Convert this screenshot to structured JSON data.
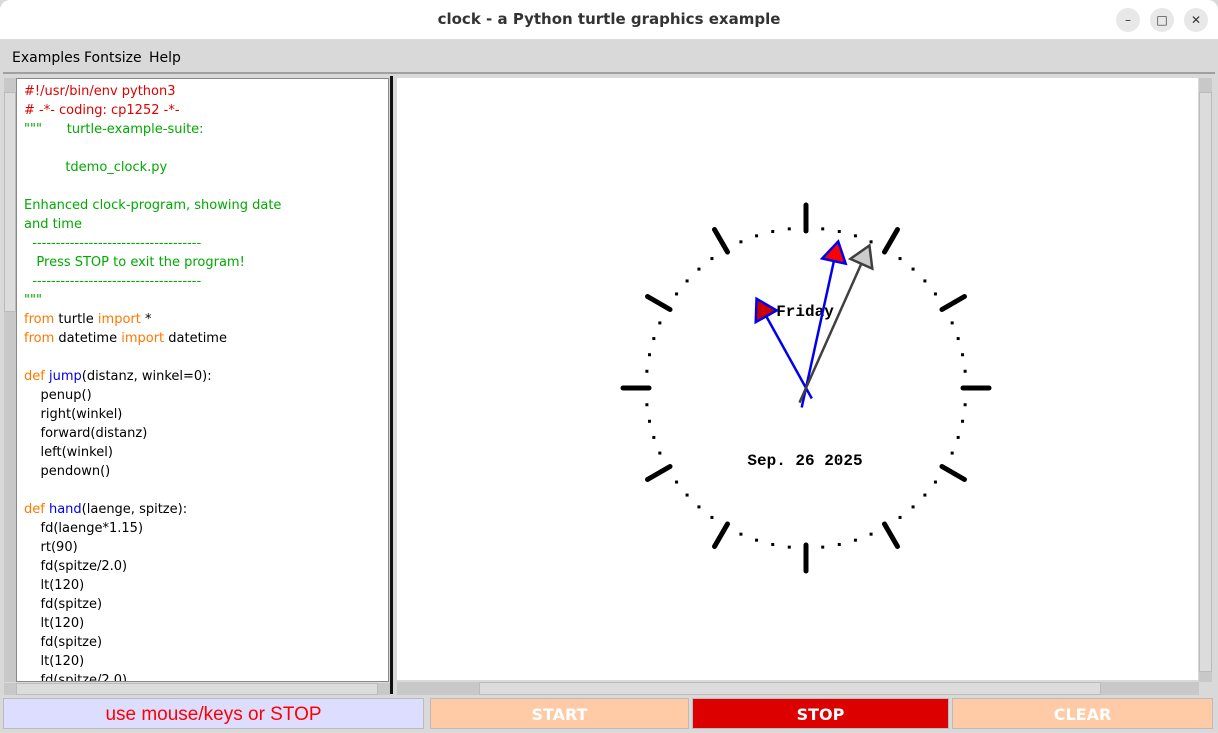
{
  "window": {
    "title": "clock - a Python turtle graphics example",
    "minimize": "–",
    "maximize": "□",
    "close": "✕"
  },
  "menu": {
    "items": [
      {
        "label": "Examples"
      },
      {
        "label": "Fontsize"
      },
      {
        "label": "Help"
      }
    ]
  },
  "colors": {
    "comment": "#e00000",
    "docstring": "#00aa00",
    "keyword": "#ff7700",
    "defname": "#0000ee",
    "text": "#000000",
    "stop": "#dd0000",
    "start_clear": "#fecba6",
    "status_bg": "#ddddff"
  },
  "code": {
    "lines": [
      [
        [
          "#!/usr/bin/env python3",
          "red"
        ]
      ],
      [
        [
          "# -*- coding: cp1252 -*-",
          "red"
        ]
      ],
      [
        [
          "\"\"\"      turtle-example-suite:",
          "green"
        ]
      ],
      [],
      [
        [
          "          tdemo_clock.py",
          "green"
        ]
      ],
      [],
      [
        [
          "Enhanced clock-program, showing date",
          "green"
        ]
      ],
      [
        [
          "and time",
          "green"
        ]
      ],
      [
        [
          "  ------------------------------------",
          "green"
        ]
      ],
      [
        [
          "   Press STOP to exit the program!",
          "green"
        ]
      ],
      [
        [
          "  ------------------------------------",
          "green"
        ]
      ],
      [
        [
          "\"\"\"",
          "green"
        ]
      ],
      [
        [
          "from",
          "orange"
        ],
        [
          " turtle ",
          "black"
        ],
        [
          "import",
          "orange"
        ],
        [
          " *",
          "black"
        ]
      ],
      [
        [
          "from",
          "orange"
        ],
        [
          " datetime ",
          "black"
        ],
        [
          "import",
          "orange"
        ],
        [
          " datetime",
          "black"
        ]
      ],
      [],
      [
        [
          "def ",
          "orange"
        ],
        [
          "jump",
          "blue"
        ],
        [
          "(distanz, winkel=0):",
          "black"
        ]
      ],
      [
        [
          "    penup()",
          "black"
        ]
      ],
      [
        [
          "    right(winkel)",
          "black"
        ]
      ],
      [
        [
          "    forward(distanz)",
          "black"
        ]
      ],
      [
        [
          "    left(winkel)",
          "black"
        ]
      ],
      [
        [
          "    pendown()",
          "black"
        ]
      ],
      [],
      [
        [
          "def ",
          "orange"
        ],
        [
          "hand",
          "blue"
        ],
        [
          "(laenge, spitze):",
          "black"
        ]
      ],
      [
        [
          "    fd(laenge*1.15)",
          "black"
        ]
      ],
      [
        [
          "    rt(90)",
          "black"
        ]
      ],
      [
        [
          "    fd(spitze/2.0)",
          "black"
        ]
      ],
      [
        [
          "    lt(120)",
          "black"
        ]
      ],
      [
        [
          "    fd(spitze)",
          "black"
        ]
      ],
      [
        [
          "    lt(120)",
          "black"
        ]
      ],
      [
        [
          "    fd(spitze)",
          "black"
        ]
      ],
      [
        [
          "    lt(120)",
          "black"
        ]
      ],
      [
        [
          "    fd(spitze/2.0)",
          "black"
        ]
      ]
    ]
  },
  "clock": {
    "weekday": "Friday",
    "date": "Sep. 26 2025",
    "hands": {
      "hour": 11,
      "minute": 2,
      "second": 4
    }
  },
  "buttons": {
    "status": "use mouse/keys or STOP",
    "start": "START",
    "stop": "STOP",
    "clear": "CLEAR"
  }
}
